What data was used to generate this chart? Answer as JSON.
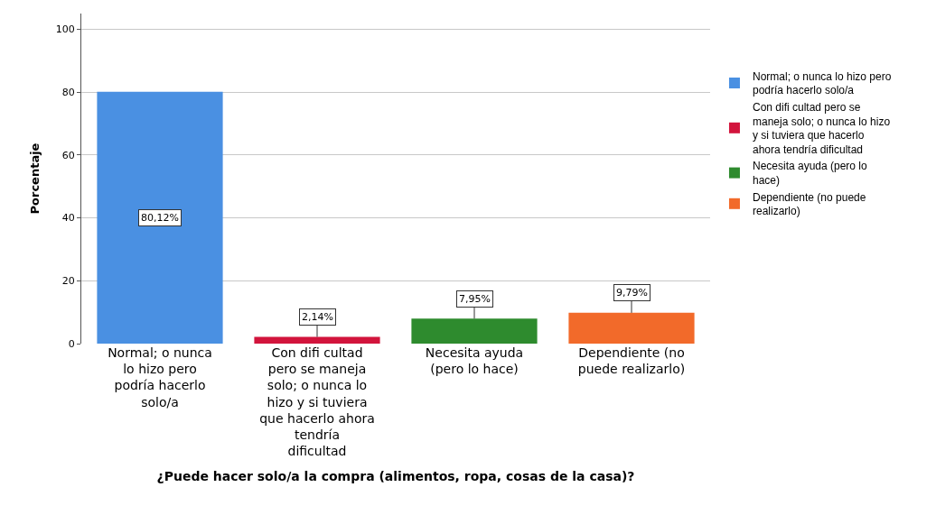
{
  "chart_data": {
    "type": "bar",
    "xlabel": "¿Puede hacer solo/a la compra (alimentos, ropa, cosas de la casa)?",
    "ylabel": "Porcentaje",
    "categories": [
      "Normal; o nunca lo hizo pero podría hacerlo solo/a",
      "Con difi cultad pero se maneja solo; o nunca lo hizo y si tuviera que hacerlo ahora tendría dificultad",
      "Necesita ayuda (pero lo hace)",
      "Dependiente (no puede realizarlo)"
    ],
    "series": [
      {
        "name": "Normal; o nunca lo hizo pero podría hacerlo solo/a",
        "color": "#4a90e2",
        "values": [
          80.12,
          null,
          null,
          null
        ],
        "value_labels": [
          "80,12%",
          null,
          null,
          null
        ]
      },
      {
        "name": "Con difi cultad pero se maneja solo; o nunca lo hizo y si tuviera que hacerlo ahora tendría dificultad",
        "color": "#d2143c",
        "values": [
          null,
          2.14,
          null,
          null
        ],
        "value_labels": [
          null,
          "2,14%",
          null,
          null
        ]
      },
      {
        "name": "Necesita ayuda (pero lo hace)",
        "color": "#2e8b2e",
        "values": [
          null,
          null,
          7.95,
          null
        ],
        "value_labels": [
          null,
          null,
          "7,95%",
          null
        ]
      },
      {
        "name": "Dependiente (no puede realizarlo)",
        "color": "#f26a2a",
        "values": [
          null,
          null,
          null,
          9.79
        ],
        "value_labels": [
          null,
          null,
          null,
          "9,79%"
        ]
      }
    ],
    "ylim": [
      0,
      105
    ],
    "yticks": [
      0,
      20,
      40,
      60,
      80,
      100
    ],
    "grid": "y",
    "legend": "top right"
  }
}
